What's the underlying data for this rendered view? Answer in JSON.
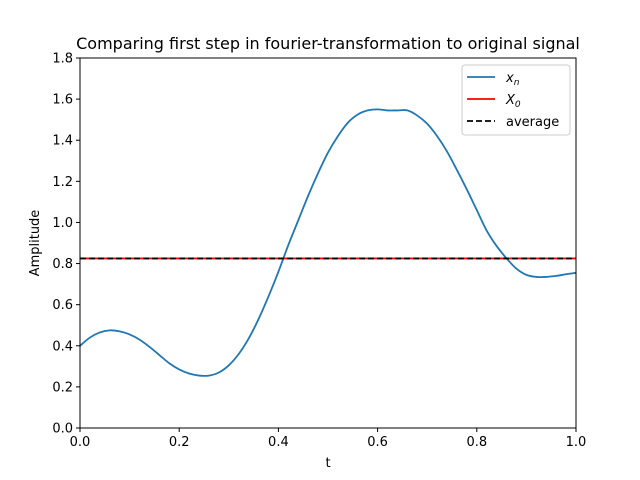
{
  "chart_data": {
    "type": "line",
    "title": "Comparing first step in fourier-transformation to original signal",
    "xlabel": "t",
    "ylabel": "Amplitude",
    "xlim": [
      0.0,
      1.0
    ],
    "ylim": [
      0.0,
      1.8
    ],
    "xticks": [
      "0.0",
      "0.2",
      "0.4",
      "0.6",
      "0.8",
      "1.0"
    ],
    "yticks": [
      "0.0",
      "0.2",
      "0.4",
      "0.6",
      "0.8",
      "1.0",
      "1.2",
      "1.4",
      "1.6",
      "1.8"
    ],
    "grid": false,
    "legend_position": "top-right",
    "series": [
      {
        "name": "x_n",
        "legend_main": "x",
        "legend_sub": "n",
        "style": "solid",
        "color": "#1f77b4",
        "x": [
          0.0,
          0.02,
          0.04,
          0.06,
          0.08,
          0.1,
          0.12,
          0.14,
          0.16,
          0.18,
          0.2,
          0.22,
          0.24,
          0.26,
          0.28,
          0.3,
          0.32,
          0.34,
          0.36,
          0.38,
          0.4,
          0.42,
          0.44,
          0.46,
          0.48,
          0.5,
          0.52,
          0.54,
          0.56,
          0.58,
          0.6,
          0.62,
          0.64,
          0.66,
          0.68,
          0.7,
          0.72,
          0.74,
          0.76,
          0.78,
          0.8,
          0.82,
          0.84,
          0.86,
          0.88,
          0.9,
          0.92,
          0.94,
          0.96,
          0.98,
          1.0
        ],
        "y": [
          0.4,
          0.44,
          0.465,
          0.475,
          0.47,
          0.455,
          0.43,
          0.395,
          0.355,
          0.315,
          0.285,
          0.265,
          0.255,
          0.255,
          0.27,
          0.305,
          0.36,
          0.435,
          0.53,
          0.64,
          0.76,
          0.89,
          1.01,
          1.13,
          1.24,
          1.34,
          1.42,
          1.485,
          1.525,
          1.545,
          1.55,
          1.545,
          1.545,
          1.545,
          1.52,
          1.48,
          1.42,
          1.345,
          1.255,
          1.16,
          1.06,
          0.96,
          0.885,
          0.825,
          0.775,
          0.745,
          0.735,
          0.735,
          0.74,
          0.748,
          0.755
        ]
      },
      {
        "name": "X_0",
        "legend_main": "X",
        "legend_sub": "0",
        "style": "solid",
        "color": "#ff0000",
        "y_const": 0.825
      },
      {
        "name": "average",
        "legend_main": "average",
        "legend_sub": "",
        "style": "dashed",
        "color": "#000000",
        "y_const": 0.825
      }
    ]
  }
}
